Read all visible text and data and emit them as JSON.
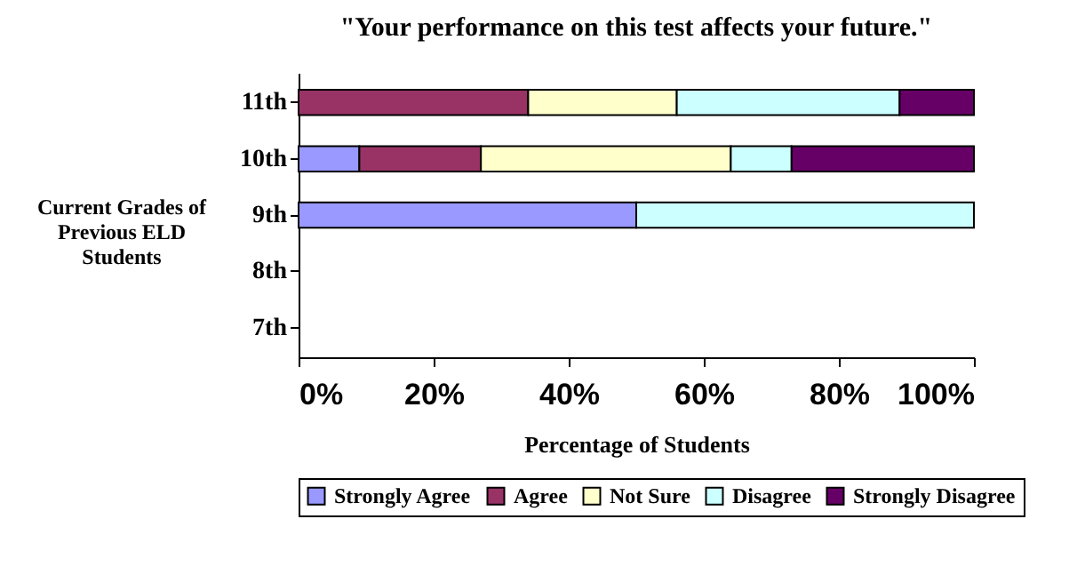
{
  "chart_data": {
    "type": "bar",
    "orientation": "horizontal",
    "stacked": true,
    "title": "\"Your performance on this test affects your future.\"",
    "xlabel": "Percentage of Students",
    "ylabel": "Current Grades of Previous ELD Students",
    "categories": [
      "11th",
      "10th",
      "9th",
      "8th",
      "7th"
    ],
    "series": [
      {
        "name": "Strongly Agree",
        "color": "#9999ff",
        "values": [
          0,
          9,
          50,
          0,
          0
        ]
      },
      {
        "name": "Agree",
        "color": "#993366",
        "values": [
          34,
          18,
          0,
          0,
          0
        ]
      },
      {
        "name": "Not Sure",
        "color": "#ffffcc",
        "values": [
          22,
          37,
          0,
          0,
          0
        ]
      },
      {
        "name": "Disagree",
        "color": "#ccffff",
        "values": [
          33,
          9,
          50,
          0,
          0
        ]
      },
      {
        "name": "Strongly Disagree",
        "color": "#660066",
        "values": [
          11,
          27,
          0,
          0,
          0
        ]
      }
    ],
    "xlim": [
      0,
      100
    ],
    "xticks": [
      {
        "value": 0,
        "label": "0%"
      },
      {
        "value": 20,
        "label": "20%"
      },
      {
        "value": 40,
        "label": "40%"
      },
      {
        "value": 60,
        "label": "60%"
      },
      {
        "value": 80,
        "label": "80%"
      },
      {
        "value": 100,
        "label": "100%"
      }
    ],
    "grid": false,
    "legend": "bottom"
  }
}
